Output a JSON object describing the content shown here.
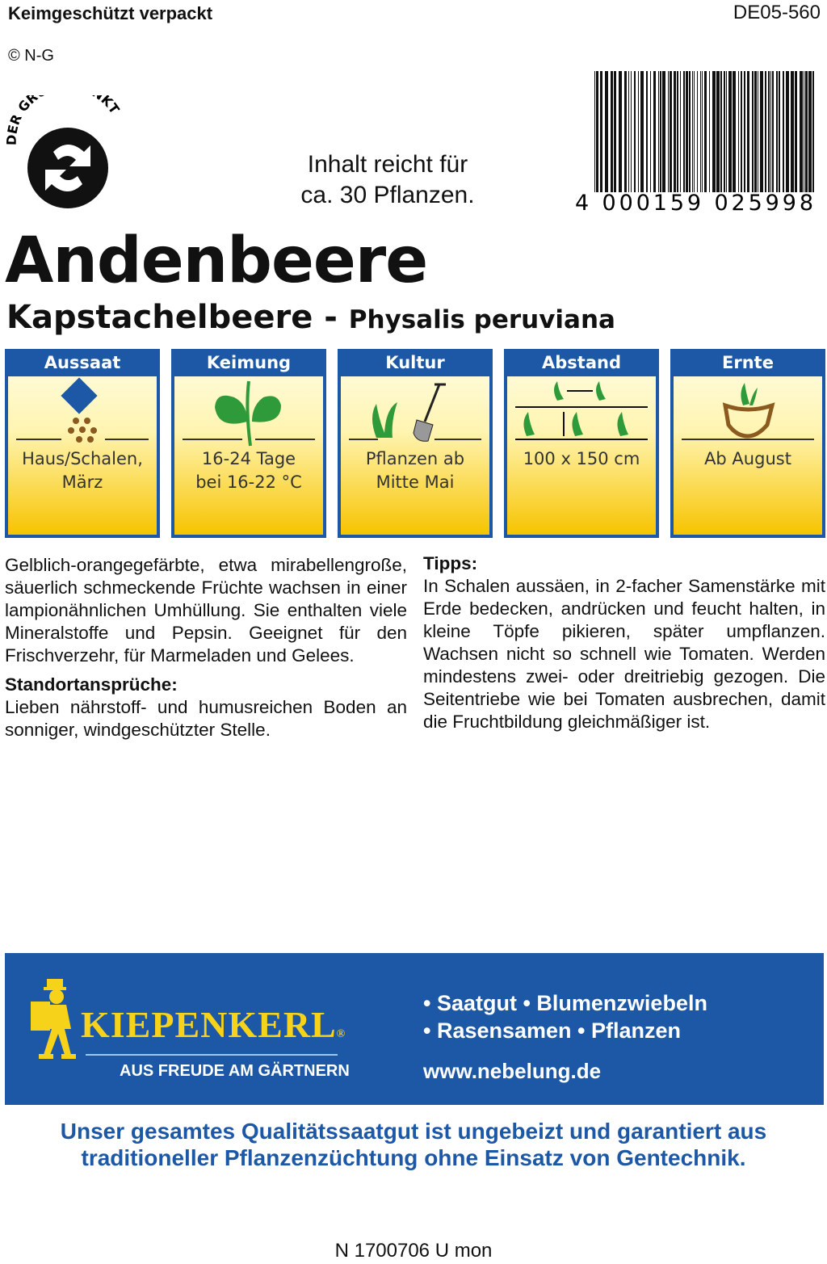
{
  "header": {
    "packaging": "Keimgeschützt verpackt",
    "article_no": "DE05-560",
    "copyright": "© N-G"
  },
  "logo_gruener_punkt": "DER GRÜNE PUNKT",
  "contents": {
    "line1": "Inhalt reicht für",
    "line2": "ca. 30 Pflanzen."
  },
  "barcode": {
    "number": "4 000159 025998"
  },
  "product": {
    "name": "Andenbeere",
    "alt_name": "Kapstachelbeere - ",
    "latin": "Physalis peruviana"
  },
  "panels": [
    {
      "title": "Aussaat",
      "icon": "seed-sowing-icon",
      "line1": "Haus/Schalen,",
      "line2": "März"
    },
    {
      "title": "Keimung",
      "icon": "seedling-icon",
      "line1": "16-24 Tage",
      "line2": "bei 16-22 °C"
    },
    {
      "title": "Kultur",
      "icon": "plant-spade-icon",
      "line1": "Pflanzen ab",
      "line2": "Mitte Mai"
    },
    {
      "title": "Abstand",
      "icon": "spacing-icon",
      "line1": "100 x 150 cm",
      "line2": ""
    },
    {
      "title": "Ernte",
      "icon": "harvest-basket-icon",
      "line1": "Ab August",
      "line2": ""
    }
  ],
  "description": "Gelblich-orangegefärbte, etwa mirabellengroße, säuerlich schmeckende Früchte wachsen in einer lampionähnlichen Umhüllung. Sie enthalten viele Mineralstoffe und Pepsin. Geeignet für den Frischverzehr, für Marmeladen und Gelees.",
  "location": {
    "heading": "Standortansprüche:",
    "text": "Lieben nährstoff- und humusreichen Boden an sonniger, windgeschützter Stelle."
  },
  "tips": {
    "heading": "Tipps:",
    "text": "In Schalen aussäen, in 2-facher Samenstärke mit Erde bedecken, andrücken und feucht halten, in kleine Töpfe pikieren, später umpflanzen. Wachsen nicht so schnell wie Tomaten. Werden mindestens zwei- oder dreitriebig gezogen. Die Seitentriebe wie bei Tomaten ausbrechen, damit die Fruchtbildung gleichmäßiger ist."
  },
  "brand": {
    "name": "KIEPENKERL",
    "registered": "®",
    "slogan": "AUS FREUDE AM GÄRTNERN",
    "products1": "• Saatgut • Blumenzwiebeln",
    "products2": "• Rasensamen • Pflanzen",
    "website": "www.nebelung.de"
  },
  "quality": {
    "line1": "Unser gesamtes Qualitätssaatgut ist ungebeizt und garantiert aus",
    "line2": "traditioneller Pflanzenzüchtung ohne Einsatz von Gentechnik."
  },
  "footer_code": "N 1700706 U mon",
  "colors": {
    "blue": "#1d58a6",
    "yellow": "#f7c400",
    "brand_yellow": "#f7d21b",
    "green": "#2f9a3a"
  }
}
